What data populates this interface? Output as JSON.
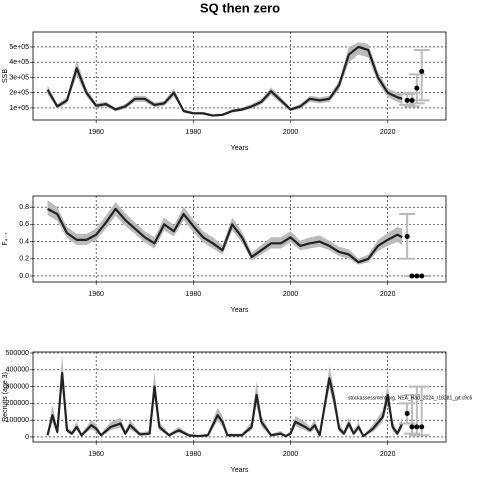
{
  "chart_data": [
    {
      "type": "line",
      "title": "SQ then zero",
      "xlabel": "Years",
      "ylabel": "SSB",
      "xlim": [
        1947,
        2032
      ],
      "ylim": [
        21000,
        598000
      ],
      "xticks": [
        1960,
        1980,
        2000,
        2020
      ],
      "yticks": [
        {
          "value": 100000,
          "label": "1e+05"
        },
        {
          "value": 200000,
          "label": "2e+05"
        },
        {
          "value": 300000,
          "label": "3e+05"
        },
        {
          "value": 400000,
          "label": "4e+05"
        },
        {
          "value": 500000,
          "label": "5e+05"
        }
      ],
      "grid": true,
      "color": "#222222",
      "band_color": "#bbbbbb",
      "x": [
        1950,
        1952,
        1954,
        1956,
        1958,
        1960,
        1962,
        1964,
        1966,
        1968,
        1970,
        1972,
        1974,
        1976,
        1978,
        1980,
        1982,
        1984,
        1986,
        1988,
        1990,
        1992,
        1994,
        1996,
        1998,
        2000,
        2002,
        2004,
        2006,
        2008,
        2010,
        2012,
        2014,
        2016,
        2018,
        2020,
        2022,
        2023
      ],
      "values": [
        220000,
        110000,
        150000,
        360000,
        200000,
        115000,
        125000,
        90000,
        110000,
        160000,
        160000,
        120000,
        130000,
        200000,
        80000,
        65000,
        65000,
        50000,
        55000,
        80000,
        90000,
        110000,
        140000,
        210000,
        150000,
        90000,
        110000,
        160000,
        150000,
        160000,
        250000,
        450000,
        500000,
        480000,
        300000,
        200000,
        170000,
        160000
      ],
      "lower": [
        190000,
        95000,
        130000,
        310000,
        175000,
        100000,
        110000,
        78000,
        95000,
        140000,
        140000,
        105000,
        113000,
        175000,
        70000,
        56000,
        56000,
        43000,
        47000,
        70000,
        78000,
        95000,
        122000,
        185000,
        130000,
        78000,
        95000,
        140000,
        130000,
        140000,
        220000,
        400000,
        450000,
        430000,
        265000,
        172000,
        140000,
        125000
      ],
      "upper": [
        250000,
        125000,
        170000,
        410000,
        225000,
        130000,
        140000,
        102000,
        125000,
        180000,
        180000,
        135000,
        147000,
        225000,
        90000,
        74000,
        74000,
        57000,
        63000,
        90000,
        102000,
        125000,
        158000,
        235000,
        170000,
        102000,
        125000,
        180000,
        170000,
        180000,
        280000,
        500000,
        530000,
        520000,
        335000,
        228000,
        200000,
        195000
      ],
      "projection": {
        "x": [
          2024,
          2025,
          2026,
          2027
        ],
        "values": [
          150000,
          150000,
          230000,
          340000
        ],
        "lower": [
          120000,
          110000,
          130000,
          150000
        ],
        "upper": [
          190000,
          200000,
          320000,
          480000
        ]
      }
    },
    {
      "type": "line",
      "xlabel": "Years",
      "ylabel": "F₄₋₇",
      "xlim": [
        1947,
        2032
      ],
      "ylim": [
        -0.07,
        0.93
      ],
      "xticks": [
        1960,
        1980,
        2000,
        2020
      ],
      "yticks": [
        {
          "value": 0,
          "label": "0.0"
        },
        0.2,
        0.4,
        0.6,
        0.8
      ],
      "grid": true,
      "color": "#222222",
      "band_color": "#bbbbbb",
      "x": [
        1950,
        1952,
        1954,
        1956,
        1958,
        1960,
        1962,
        1964,
        1966,
        1968,
        1970,
        1972,
        1974,
        1976,
        1978,
        1980,
        1982,
        1984,
        1986,
        1988,
        1990,
        1992,
        1994,
        1996,
        1998,
        2000,
        2002,
        2004,
        2006,
        2008,
        2010,
        2012,
        2014,
        2016,
        2018,
        2020,
        2022,
        2023
      ],
      "values": [
        0.78,
        0.72,
        0.5,
        0.42,
        0.42,
        0.48,
        0.62,
        0.78,
        0.65,
        0.55,
        0.45,
        0.38,
        0.6,
        0.52,
        0.72,
        0.58,
        0.45,
        0.38,
        0.3,
        0.6,
        0.45,
        0.22,
        0.3,
        0.38,
        0.38,
        0.45,
        0.35,
        0.38,
        0.4,
        0.35,
        0.28,
        0.25,
        0.16,
        0.2,
        0.35,
        0.42,
        0.48,
        0.45
      ],
      "lower": [
        0.71,
        0.64,
        0.44,
        0.36,
        0.36,
        0.42,
        0.55,
        0.7,
        0.58,
        0.49,
        0.39,
        0.32,
        0.53,
        0.46,
        0.65,
        0.51,
        0.39,
        0.32,
        0.25,
        0.53,
        0.39,
        0.18,
        0.25,
        0.32,
        0.32,
        0.39,
        0.3,
        0.32,
        0.34,
        0.3,
        0.23,
        0.2,
        0.13,
        0.16,
        0.29,
        0.35,
        0.4,
        0.36
      ],
      "upper": [
        0.88,
        0.8,
        0.57,
        0.49,
        0.49,
        0.55,
        0.7,
        0.86,
        0.73,
        0.62,
        0.52,
        0.45,
        0.68,
        0.59,
        0.8,
        0.66,
        0.52,
        0.45,
        0.36,
        0.68,
        0.52,
        0.27,
        0.36,
        0.45,
        0.45,
        0.52,
        0.41,
        0.45,
        0.47,
        0.41,
        0.34,
        0.31,
        0.2,
        0.25,
        0.42,
        0.5,
        0.57,
        0.55
      ],
      "projection": {
        "x": [
          2024,
          2025,
          2026,
          2027
        ],
        "values": [
          0.46,
          0,
          0,
          0
        ],
        "lower": [
          0.2,
          0,
          0,
          0
        ],
        "upper": [
          0.72,
          0,
          0,
          0
        ]
      }
    },
    {
      "type": "line",
      "xlabel": "Years",
      "ylabel": "Recruits (age 3)",
      "annotation": "stockassessment.org, NEA_Had_2024_r18281_git:c9c6",
      "xlim": [
        1947,
        2032
      ],
      "ylim": [
        -30000,
        506000
      ],
      "xticks": [
        1960,
        1980,
        2000,
        2020
      ],
      "yticks": [
        0,
        100000,
        200000,
        300000,
        400000,
        500000
      ],
      "grid": true,
      "color": "#222222",
      "band_color": "#bbbbbb",
      "x": [
        1950,
        1951,
        1952,
        1953,
        1954,
        1955,
        1956,
        1957,
        1959,
        1960,
        1961,
        1963,
        1965,
        1966,
        1967,
        1969,
        1971,
        1972,
        1973,
        1975,
        1977,
        1979,
        1981,
        1983,
        1985,
        1986,
        1987,
        1990,
        1992,
        1993,
        1994,
        1996,
        1998,
        1999,
        2000,
        2001,
        2003,
        2004,
        2005,
        2006,
        2008,
        2009,
        2010,
        2011,
        2012,
        2013,
        2014,
        2015,
        2017,
        2019,
        2020,
        2021,
        2022,
        2023
      ],
      "values": [
        10000,
        130000,
        30000,
        380000,
        40000,
        20000,
        60000,
        10000,
        70000,
        50000,
        10000,
        60000,
        80000,
        20000,
        70000,
        15000,
        20000,
        300000,
        60000,
        10000,
        40000,
        10000,
        5000,
        10000,
        130000,
        90000,
        10000,
        10000,
        60000,
        250000,
        90000,
        10000,
        20000,
        5000,
        20000,
        90000,
        60000,
        40000,
        70000,
        10000,
        350000,
        220000,
        50000,
        20000,
        80000,
        20000,
        60000,
        5000,
        50000,
        120000,
        250000,
        60000,
        20000,
        80000
      ],
      "lower": [
        5000,
        90000,
        15000,
        290000,
        25000,
        10000,
        40000,
        5000,
        45000,
        30000,
        5000,
        40000,
        55000,
        10000,
        45000,
        8000,
        10000,
        230000,
        40000,
        5000,
        25000,
        5000,
        2000,
        5000,
        95000,
        60000,
        5000,
        5000,
        40000,
        190000,
        60000,
        5000,
        10000,
        2000,
        10000,
        65000,
        40000,
        25000,
        45000,
        5000,
        290000,
        170000,
        30000,
        10000,
        55000,
        10000,
        40000,
        2000,
        30000,
        90000,
        200000,
        35000,
        10000,
        50000
      ],
      "upper": [
        20000,
        190000,
        50000,
        500000,
        60000,
        35000,
        90000,
        20000,
        100000,
        75000,
        20000,
        90000,
        115000,
        35000,
        100000,
        28000,
        35000,
        390000,
        90000,
        20000,
        60000,
        20000,
        10000,
        20000,
        175000,
        125000,
        20000,
        20000,
        90000,
        330000,
        125000,
        20000,
        35000,
        10000,
        35000,
        125000,
        90000,
        60000,
        100000,
        20000,
        420000,
        280000,
        80000,
        35000,
        115000,
        35000,
        90000,
        10000,
        75000,
        160000,
        310000,
        95000,
        35000,
        120000
      ],
      "projection": {
        "x": [
          2024,
          2025,
          2026,
          2027
        ],
        "values": [
          140000,
          60000,
          60000,
          60000
        ],
        "lower": [
          80000,
          20000,
          10000,
          10000
        ],
        "upper": [
          200000,
          250000,
          300000,
          300000
        ]
      }
    }
  ]
}
